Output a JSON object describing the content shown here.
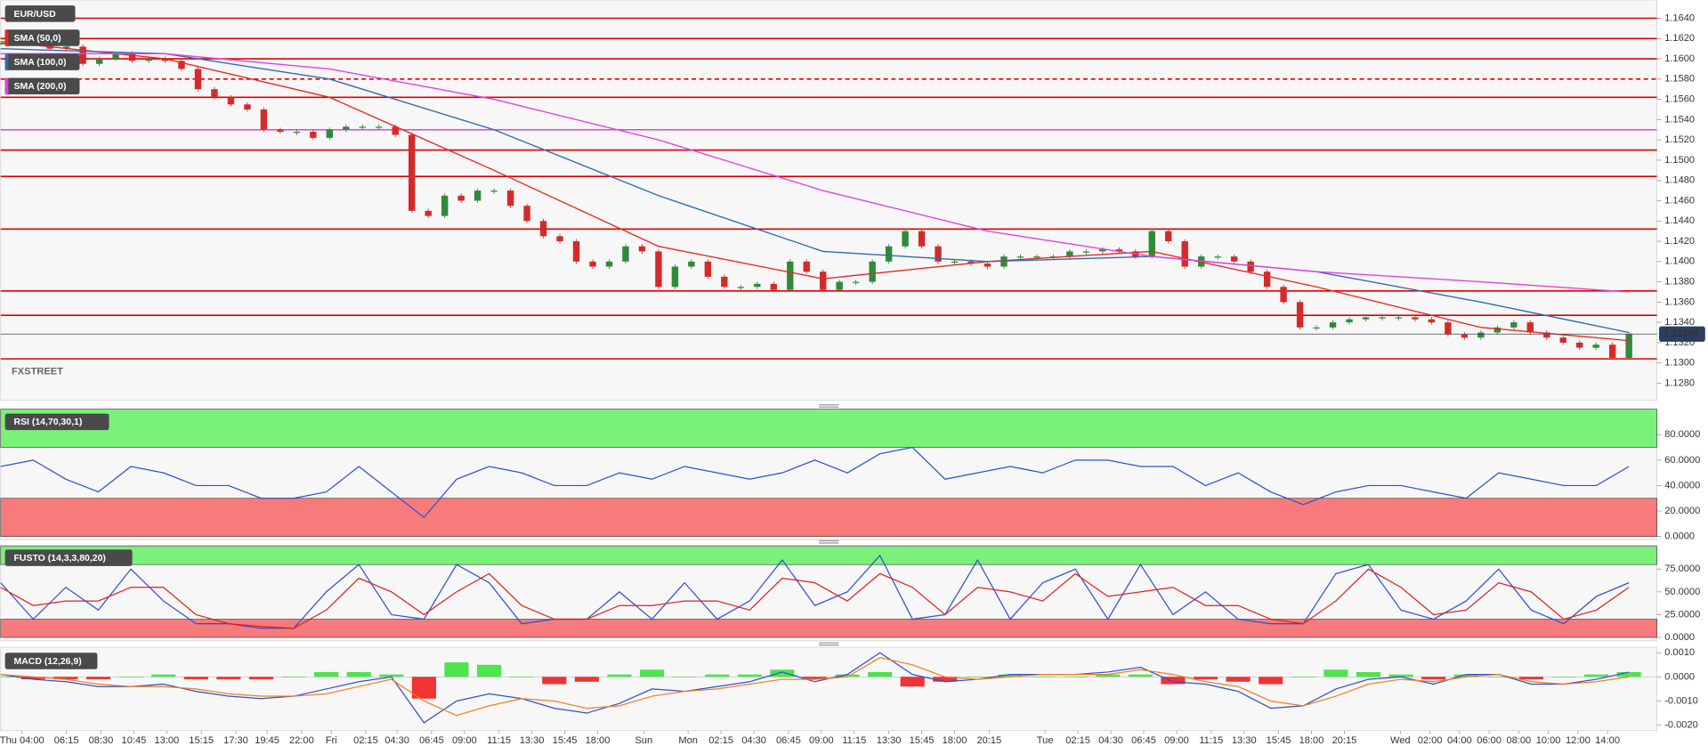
{
  "chart_data": [
    {
      "type": "candlestick",
      "title": "EUR/USD",
      "watermark": "FXSTREET",
      "values": [
        1.1615,
        1.162,
        1.1618,
        1.161,
        1.1612,
        1.1595,
        1.16,
        1.1605,
        1.1598,
        1.16,
        1.1598,
        1.159,
        1.157,
        1.1562,
        1.1555,
        1.155,
        1.153,
        1.1528,
        1.1528,
        1.1522,
        1.153,
        1.1533,
        1.1533,
        1.1533,
        1.1525,
        1.145,
        1.1445,
        1.1465,
        1.146,
        1.147,
        1.147,
        1.1455,
        1.144,
        1.1425,
        1.142,
        1.14,
        1.1395,
        1.14,
        1.1415,
        1.141,
        1.1375,
        1.1395,
        1.14,
        1.1385,
        1.1375,
        1.1375,
        1.1378,
        1.1372,
        1.14,
        1.139,
        1.1372,
        1.138,
        1.138,
        1.14,
        1.1415,
        1.143,
        1.1415,
        1.14,
        1.14,
        1.1398,
        1.1395,
        1.1405,
        1.1405,
        1.1405,
        1.1405,
        1.141,
        1.141,
        1.1412,
        1.141,
        1.1405,
        1.143,
        1.142,
        1.1395,
        1.1405,
        1.1405,
        1.14,
        1.139,
        1.1375,
        1.136,
        1.1335,
        1.1335,
        1.134,
        1.1343,
        1.1345,
        1.1345,
        1.1345,
        1.1343,
        1.134,
        1.1328,
        1.1325,
        1.133,
        1.1335,
        1.134,
        1.133,
        1.1325,
        1.132,
        1.1315,
        1.1318,
        1.1305,
        1.13285
      ],
      "up_color": "#2f8a3a",
      "down_color": "#d42a2a",
      "last_price": 1.13285,
      "series": [
        {
          "name": "SMA (50,0)",
          "color": "#e8281e",
          "x": [
            0,
            10,
            20,
            30,
            40,
            50,
            60,
            70,
            80,
            90,
            99
          ],
          "values": [
            1.1617,
            1.16,
            1.1562,
            1.149,
            1.1415,
            1.1383,
            1.14,
            1.141,
            1.1375,
            1.1335,
            1.1322
          ]
        },
        {
          "name": "SMA (100,0)",
          "color": "#2f6bb0",
          "x": [
            0,
            10,
            20,
            30,
            40,
            50,
            60,
            70,
            80,
            90,
            99
          ],
          "values": [
            1.161,
            1.1605,
            1.158,
            1.153,
            1.1465,
            1.141,
            1.14,
            1.1405,
            1.139,
            1.136,
            1.133
          ]
        },
        {
          "name": "SMA (200,0)",
          "color": "#e040e0",
          "x": [
            0,
            10,
            20,
            30,
            40,
            50,
            60,
            70,
            80,
            90,
            99
          ],
          "values": [
            1.1605,
            1.1605,
            1.159,
            1.156,
            1.152,
            1.147,
            1.143,
            1.1405,
            1.139,
            1.138,
            1.137
          ]
        }
      ],
      "levels": [
        {
          "value": 1.164,
          "color": "#e00000"
        },
        {
          "value": 1.162,
          "color": "#e00000"
        },
        {
          "value": 1.16,
          "color": "#e00000"
        },
        {
          "value": 1.158,
          "color": "#e00000",
          "dashed": true
        },
        {
          "value": 1.1562,
          "color": "#e00000"
        },
        {
          "value": 1.153,
          "color": "#e040e0"
        },
        {
          "value": 1.151,
          "color": "#e00000"
        },
        {
          "value": 1.1484,
          "color": "#e00000"
        },
        {
          "value": 1.1432,
          "color": "#e00000"
        },
        {
          "value": 1.1371,
          "color": "#e00000"
        },
        {
          "value": 1.1347,
          "color": "#e00000"
        },
        {
          "value": 1.1304,
          "color": "#e00000"
        }
      ],
      "xlim": [
        0,
        100.7
      ],
      "ylim": [
        1.1263,
        1.1658
      ],
      "yticks": [
        {
          "value": 1.164,
          "label": "1.1640"
        },
        {
          "value": 1.162,
          "label": "1.1620"
        },
        {
          "value": 1.16,
          "label": "1.1600"
        },
        {
          "value": 1.158,
          "label": "1.1580"
        },
        {
          "value": 1.156,
          "label": "1.1560"
        },
        {
          "value": 1.154,
          "label": "1.1540"
        },
        {
          "value": 1.152,
          "label": "1.1520"
        },
        {
          "value": 1.15,
          "label": "1.1500"
        },
        {
          "value": 1.148,
          "label": "1.1480"
        },
        {
          "value": 1.146,
          "label": "1.1460"
        },
        {
          "value": 1.144,
          "label": "1.1440"
        },
        {
          "value": 1.142,
          "label": "1.1420"
        },
        {
          "value": 1.14,
          "label": "1.1400"
        },
        {
          "value": 1.138,
          "label": "1.1380"
        },
        {
          "value": 1.136,
          "label": "1.1360"
        },
        {
          "value": 1.134,
          "label": "1.1340"
        },
        {
          "value": 1.132,
          "label": "1.1320"
        },
        {
          "value": 1.13,
          "label": "1.1300"
        },
        {
          "value": 1.128,
          "label": "1.1280"
        }
      ],
      "xticks": [
        {
          "value": 1.3,
          "label": "Thu 04:00"
        },
        {
          "value": 4,
          "label": "06:15"
        },
        {
          "value": 6.1,
          "label": "08:30"
        },
        {
          "value": 8.1,
          "label": "10:45"
        },
        {
          "value": 10.1,
          "label": "13:00"
        },
        {
          "value": 12.2,
          "label": "15:15"
        },
        {
          "value": 14.3,
          "label": "17:30"
        },
        {
          "value": 16.2,
          "label": "19:45"
        },
        {
          "value": 18.3,
          "label": "22:00"
        },
        {
          "value": 20.1,
          "label": "Fri"
        },
        {
          "value": 22.2,
          "label": "02:15"
        },
        {
          "value": 24.1,
          "label": "04:30"
        },
        {
          "value": 26.2,
          "label": "06:45"
        },
        {
          "value": 28.2,
          "label": "09:00"
        },
        {
          "value": 30.3,
          "label": "11:15"
        },
        {
          "value": 32.3,
          "label": "13:30"
        },
        {
          "value": 34.3,
          "label": "15:45"
        },
        {
          "value": 36.3,
          "label": "18:00"
        },
        {
          "value": 39.1,
          "label": "Sun"
        },
        {
          "value": 41.8,
          "label": "Mon"
        },
        {
          "value": 43.8,
          "label": "02:15"
        },
        {
          "value": 45.8,
          "label": "04:30"
        },
        {
          "value": 47.9,
          "label": "06:45"
        },
        {
          "value": 49.9,
          "label": "09:00"
        },
        {
          "value": 51.9,
          "label": "11:15"
        },
        {
          "value": 54,
          "label": "13:30"
        },
        {
          "value": 56,
          "label": "15:45"
        },
        {
          "value": 58,
          "label": "18:00"
        },
        {
          "value": 60.1,
          "label": "20:15"
        },
        {
          "value": 63.5,
          "label": "Tue"
        },
        {
          "value": 65.5,
          "label": "02:15"
        },
        {
          "value": 67.5,
          "label": "04:30"
        },
        {
          "value": 69.5,
          "label": "06:45"
        },
        {
          "value": 71.5,
          "label": "09:00"
        },
        {
          "value": 73.6,
          "label": "11:15"
        },
        {
          "value": 75.6,
          "label": "13:30"
        },
        {
          "value": 77.7,
          "label": "15:45"
        },
        {
          "value": 79.7,
          "label": "18:00"
        },
        {
          "value": 81.7,
          "label": "20:15"
        },
        {
          "value": 85.1,
          "label": "Wed"
        },
        {
          "value": 86.9,
          "label": "02:00"
        },
        {
          "value": 88.7,
          "label": "04:00"
        },
        {
          "value": 90.5,
          "label": "06:00"
        },
        {
          "value": 92.3,
          "label": "08:00"
        },
        {
          "value": 94.1,
          "label": "10:00"
        },
        {
          "value": 95.9,
          "label": "12:00"
        },
        {
          "value": 97.7,
          "label": "14:00"
        }
      ]
    },
    {
      "type": "oscillator",
      "title": "RSI (14,70,30,1)",
      "bands": [
        70,
        30
      ],
      "zone_colors": [
        "#7af27a",
        "#f77b7b"
      ],
      "series": [
        {
          "color": "#2f4fd0",
          "values": [
            55,
            60,
            45,
            35,
            55,
            50,
            40,
            40,
            30,
            30,
            35,
            55,
            35,
            15,
            45,
            55,
            50,
            40,
            40,
            50,
            45,
            55,
            50,
            45,
            50,
            60,
            50,
            65,
            70,
            45,
            50,
            55,
            50,
            60,
            60,
            55,
            55,
            40,
            50,
            35,
            25,
            35,
            40,
            40,
            35,
            30,
            50,
            45,
            40,
            40,
            55
          ]
        }
      ],
      "ylim": [
        0,
        100
      ],
      "yticks": [
        {
          "value": 80,
          "label": "80.0000"
        },
        {
          "value": 60,
          "label": "60.0000"
        },
        {
          "value": 40,
          "label": "40.0000"
        },
        {
          "value": 20,
          "label": "20.0000"
        },
        {
          "value": 0,
          "label": "0.0000"
        }
      ]
    },
    {
      "type": "oscillator",
      "title": "FUSTO (14,3,3,80,20)",
      "bands": [
        80,
        20
      ],
      "zone_colors": [
        "#7af27a",
        "#f77b7b"
      ],
      "series": [
        {
          "color": "#2f4fd0",
          "values": [
            60,
            20,
            55,
            30,
            75,
            40,
            15,
            15,
            10,
            10,
            50,
            80,
            25,
            20,
            80,
            60,
            15,
            20,
            20,
            50,
            20,
            60,
            20,
            40,
            85,
            35,
            50,
            90,
            20,
            25,
            85,
            20,
            60,
            75,
            20,
            80,
            25,
            50,
            20,
            15,
            15,
            70,
            80,
            30,
            20,
            40,
            75,
            30,
            15,
            45,
            60
          ]
        },
        {
          "color": "#e02020",
          "values": [
            55,
            35,
            40,
            40,
            55,
            55,
            25,
            15,
            12,
            10,
            30,
            65,
            50,
            25,
            50,
            70,
            35,
            20,
            20,
            35,
            35,
            40,
            40,
            30,
            65,
            60,
            40,
            70,
            55,
            25,
            55,
            50,
            40,
            70,
            45,
            50,
            55,
            35,
            35,
            20,
            15,
            40,
            75,
            55,
            25,
            30,
            60,
            50,
            20,
            30,
            55
          ]
        }
      ],
      "ylim": [
        0,
        100
      ],
      "yticks": [
        {
          "value": 75,
          "label": "75.0000"
        },
        {
          "value": 50,
          "label": "50.0000"
        },
        {
          "value": 25,
          "label": "25.0000"
        },
        {
          "value": 0,
          "label": "0.0000"
        }
      ]
    },
    {
      "type": "macd",
      "title": "MACD (12,26,9)",
      "hist_colors": [
        "#30e030",
        "#f01010"
      ],
      "series": [
        {
          "color": "#2f4fd0",
          "values": [
            0.0001,
            -0.0001,
            -0.0002,
            -0.0004,
            -0.0004,
            -0.0003,
            -0.0006,
            -0.0008,
            -0.0009,
            -0.0008,
            -0.0005,
            -0.0002,
            0,
            -0.0019,
            -0.001,
            -0.0007,
            -0.0009,
            -0.0013,
            -0.0015,
            -0.0011,
            -0.0005,
            -0.0006,
            -0.0004,
            -0.0002,
            0.0002,
            -0.0002,
            0.0001,
            0.001,
            0.0001,
            -0.0002,
            -0.0001,
            0.0001,
            0.0001,
            0.0001,
            0.0002,
            0.0004,
            -0.0002,
            -0.0003,
            -0.0006,
            -0.0013,
            -0.0012,
            -0.0005,
            -0.0001,
            0,
            -0.0003,
            0.0001,
            0.0001,
            -0.0003,
            -0.0003,
            -0.0001,
            0.0002
          ]
        },
        {
          "color": "#f08020",
          "values": [
            0.0001,
            0,
            -0.0001,
            -0.0003,
            -0.0004,
            -0.0004,
            -0.0005,
            -0.0007,
            -0.0008,
            -0.0008,
            -0.0007,
            -0.0004,
            -0.0001,
            -0.001,
            -0.0016,
            -0.0012,
            -0.0009,
            -0.001,
            -0.0013,
            -0.0012,
            -0.0008,
            -0.0006,
            -0.0005,
            -0.0003,
            -0.0001,
            -0.0001,
            0,
            0.0008,
            0.0005,
            0,
            -0.0001,
            0,
            0.0001,
            0.0001,
            0.0001,
            0.0003,
            0.0001,
            -0.0002,
            -0.0004,
            -0.001,
            -0.0012,
            -0.0008,
            -0.0003,
            -0.0001,
            -0.0002,
            0,
            0.0001,
            -0.0002,
            -0.0003,
            -0.0002,
            0
          ]
        }
      ],
      "ylim": [
        -0.002,
        0.001
      ],
      "yticks": [
        {
          "value": 0.001,
          "label": "0.0010"
        },
        {
          "value": 0,
          "label": "0.0000"
        },
        {
          "value": -0.001,
          "label": "-0.0010"
        },
        {
          "value": -0.002,
          "label": "-0.0020"
        }
      ]
    }
  ]
}
